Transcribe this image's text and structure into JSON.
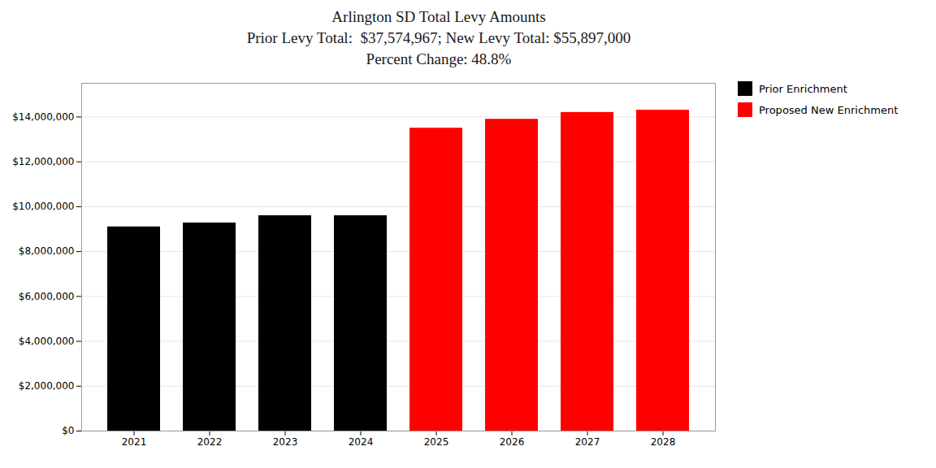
{
  "chart_data": {
    "type": "bar",
    "title": [
      "Arlington SD Total Levy Amounts",
      "Prior Levy Total:  $37,574,967; New Levy Total: $55,897,000",
      "Percent Change: 48.8%"
    ],
    "categories": [
      "2021",
      "2022",
      "2023",
      "2024",
      "2025",
      "2026",
      "2027",
      "2028"
    ],
    "series": [
      {
        "name": "Prior Enrichment",
        "color": "#000000",
        "values": [
          9100000,
          9274967,
          9600000,
          9600000,
          null,
          null,
          null,
          null
        ]
      },
      {
        "name": "Proposed New Enrichment",
        "color": "#ff0000",
        "values": [
          null,
          null,
          null,
          null,
          13500000,
          13897000,
          14200000,
          14300000
        ]
      }
    ],
    "ylim": [
      0,
      15500000
    ],
    "yticks": [
      {
        "value": 0,
        "label": "$0"
      },
      {
        "value": 2000000,
        "label": "$2,000,000"
      },
      {
        "value": 4000000,
        "label": "$4,000,000"
      },
      {
        "value": 6000000,
        "label": "$6,000,000"
      },
      {
        "value": 8000000,
        "label": "$8,000,000"
      },
      {
        "value": 10000000,
        "label": "$10,000,000"
      },
      {
        "value": 12000000,
        "label": "$12,000,000"
      },
      {
        "value": 14000000,
        "label": "$14,000,000"
      }
    ],
    "grid": true,
    "legend": "right"
  }
}
